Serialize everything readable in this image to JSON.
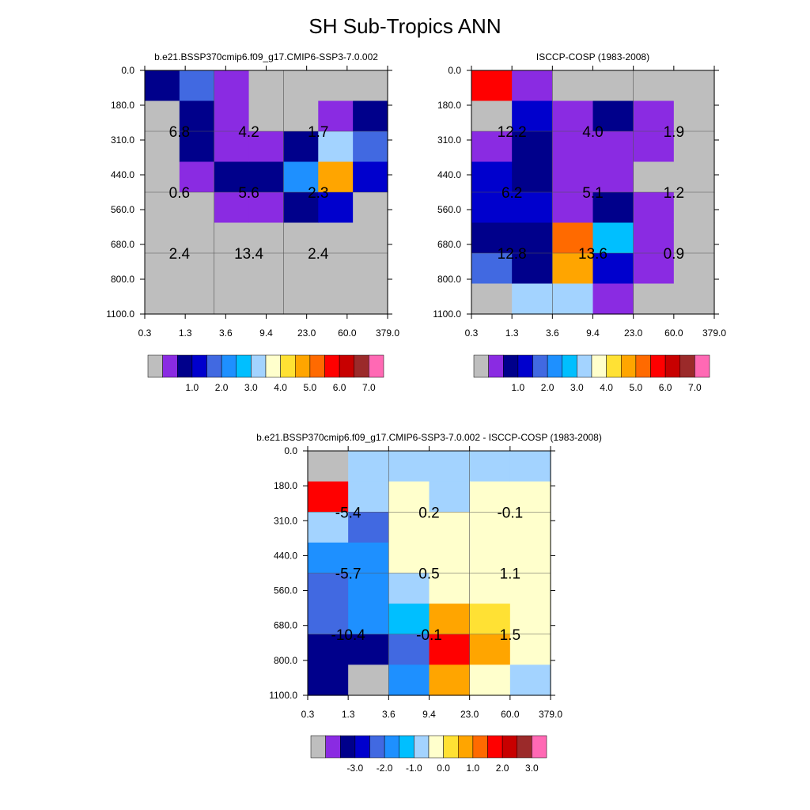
{
  "figure": {
    "title": "SH Sub-Tropics ANN"
  },
  "palettes": {
    "abs": [
      "#BEBEBE",
      "#8A2BE2",
      "#00008B",
      "#0000CD",
      "#4169E1",
      "#1E90FF",
      "#00BFFF",
      "#A3D3FF",
      "#FFFFCC",
      "#FFE134",
      "#FFA500",
      "#FF6A00",
      "#FF0000",
      "#C80000",
      "#9B2A2A",
      "#FF69B4"
    ],
    "diff": [
      "#BEBEBE",
      "#8A2BE2",
      "#00008B",
      "#0000CD",
      "#4169E1",
      "#1E90FF",
      "#00BFFF",
      "#A3D3FF",
      "#FFFFCC",
      "#FFE134",
      "#FFA500",
      "#FF6A00",
      "#FF0000",
      "#C80000",
      "#9B2A2A",
      "#FF69B4"
    ]
  },
  "chart_data": [
    {
      "type": "heatmap",
      "title": "b.e21.BSSP370cmip6.f09_g17.CMIP6-SSP3-7.0.002",
      "x_ticks": [
        "0.3",
        "1.3",
        "3.6",
        "9.4",
        "23.0",
        "60.0",
        "379.0"
      ],
      "y_ticks": [
        "0.0",
        "180.0",
        "310.0",
        "440.0",
        "560.0",
        "680.0",
        "800.0",
        "1100.0"
      ],
      "cell_colors": [
        [
          2,
          0,
          0,
          0,
          0,
          0,
          0,
          0
        ],
        [
          4,
          2,
          2,
          1,
          0,
          0,
          0,
          0
        ],
        [
          1,
          1,
          1,
          2,
          1,
          0,
          0,
          0
        ],
        [
          0,
          0,
          1,
          2,
          1,
          0,
          0,
          0
        ],
        [
          0,
          0,
          2,
          5,
          2,
          0,
          0,
          0
        ],
        [
          0,
          1,
          7,
          10,
          3,
          0,
          0,
          0
        ],
        [
          0,
          2,
          4,
          3,
          0,
          0,
          0,
          0
        ]
      ],
      "labels": [
        {
          "text": "6.8",
          "c": 0,
          "r": 1
        },
        {
          "text": "4.2",
          "c": 2,
          "r": 1
        },
        {
          "text": "1.7",
          "c": 4,
          "r": 1
        },
        {
          "text": "0.6",
          "c": 0,
          "r": 3
        },
        {
          "text": "5.6",
          "c": 2,
          "r": 3
        },
        {
          "text": "2.3",
          "c": 4,
          "r": 3
        },
        {
          "text": "2.4",
          "c": 0,
          "r": 5
        },
        {
          "text": "13.4",
          "c": 2,
          "r": 5
        },
        {
          "text": "2.4",
          "c": 4,
          "r": 5
        }
      ],
      "colorbar": {
        "palette": "abs",
        "labels": [
          "1.0",
          "2.0",
          "3.0",
          "4.0",
          "5.0",
          "6.0",
          "7.0"
        ]
      }
    },
    {
      "type": "heatmap",
      "title": "ISCCP-COSP (1983-2008)",
      "x_ticks": [
        "0.3",
        "1.3",
        "3.6",
        "9.4",
        "23.0",
        "60.0",
        "379.0"
      ],
      "y_ticks": [
        "0.0",
        "180.0",
        "310.0",
        "440.0",
        "560.0",
        "680.0",
        "800.0",
        "1100.0"
      ],
      "cell_colors": [
        [
          12,
          0,
          1,
          3,
          3,
          2,
          4,
          0
        ],
        [
          1,
          3,
          2,
          2,
          3,
          2,
          2,
          7
        ],
        [
          0,
          1,
          1,
          1,
          1,
          11,
          10,
          7
        ],
        [
          0,
          2,
          1,
          1,
          2,
          6,
          3,
          1
        ],
        [
          0,
          1,
          1,
          0,
          1,
          1,
          1,
          0
        ],
        [
          0,
          0,
          0,
          0,
          0,
          0,
          0,
          0
        ]
      ],
      "labels": [
        {
          "text": "12.2",
          "c": 0,
          "r": 1
        },
        {
          "text": "4.0",
          "c": 2,
          "r": 1
        },
        {
          "text": "1.9",
          "c": 4,
          "r": 1
        },
        {
          "text": "6.2",
          "c": 0,
          "r": 3
        },
        {
          "text": "5.1",
          "c": 2,
          "r": 3
        },
        {
          "text": "1.2",
          "c": 4,
          "r": 3
        },
        {
          "text": "12.8",
          "c": 0,
          "r": 5
        },
        {
          "text": "13.6",
          "c": 2,
          "r": 5
        },
        {
          "text": "0.9",
          "c": 4,
          "r": 5
        }
      ],
      "colorbar": {
        "palette": "abs",
        "labels": [
          "1.0",
          "2.0",
          "3.0",
          "4.0",
          "5.0",
          "6.0",
          "7.0"
        ]
      }
    },
    {
      "type": "heatmap",
      "title": "b.e21.BSSP370cmip6.f09_g17.CMIP6-SSP3-7.0.002 - ISCCP-COSP (1983-2008)",
      "x_ticks": [
        "0.3",
        "1.3",
        "3.6",
        "9.4",
        "23.0",
        "60.0",
        "379.0"
      ],
      "y_ticks": [
        "0.0",
        "180.0",
        "310.0",
        "440.0",
        "560.0",
        "680.0",
        "800.0",
        "1100.0"
      ],
      "cell_colors": [
        [
          0,
          12,
          7,
          5,
          4,
          4,
          2,
          2
        ],
        [
          7,
          7,
          4,
          5,
          5,
          5,
          2,
          0
        ],
        [
          7,
          8,
          8,
          8,
          7,
          6,
          4,
          5
        ],
        [
          7,
          7,
          8,
          8,
          8,
          10,
          12,
          10
        ],
        [
          7,
          8,
          8,
          8,
          8,
          9,
          10,
          8
        ],
        [
          7,
          8,
          8,
          8,
          8,
          8,
          8,
          7
        ]
      ],
      "labels": [
        {
          "text": "-5.4",
          "c": 0,
          "r": 1
        },
        {
          "text": "0.2",
          "c": 2,
          "r": 1
        },
        {
          "text": "-0.1",
          "c": 4,
          "r": 1
        },
        {
          "text": "-5.7",
          "c": 0,
          "r": 3
        },
        {
          "text": "0.5",
          "c": 2,
          "r": 3
        },
        {
          "text": "1.1",
          "c": 4,
          "r": 3
        },
        {
          "text": "-10.4",
          "c": 0,
          "r": 5
        },
        {
          "text": "-0.1",
          "c": 2,
          "r": 5
        },
        {
          "text": "1.5",
          "c": 4,
          "r": 5
        }
      ],
      "colorbar": {
        "palette": "diff",
        "labels": [
          "-3.0",
          "-2.0",
          "-1.0",
          "0.0",
          "1.0",
          "2.0",
          "3.0"
        ]
      }
    }
  ]
}
